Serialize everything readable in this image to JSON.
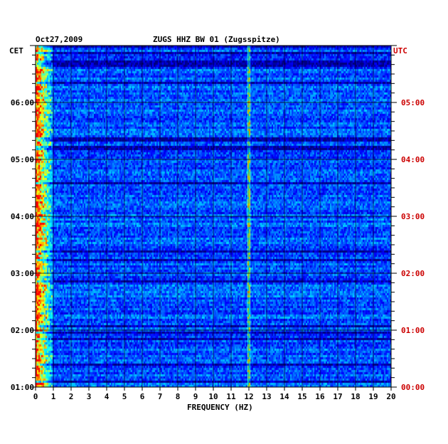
{
  "chart_data": {
    "type": "heatmap",
    "title": "ZUGS HHZ BW 01 (Zugsspitze)",
    "date": "Oct27,2009",
    "xlabel": "FREQUENCY (HZ)",
    "x_ticks": [
      0,
      1,
      2,
      3,
      4,
      5,
      6,
      7,
      8,
      9,
      10,
      11,
      12,
      13,
      14,
      15,
      16,
      17,
      18,
      19,
      20
    ],
    "xlim": [
      0,
      20
    ],
    "left_axis_label": "CET",
    "right_axis_label": "UTC",
    "left_ticks": [
      "06:00",
      "05:00",
      "04:00",
      "03:00",
      "02:00",
      "01:00"
    ],
    "right_ticks": [
      "05:00",
      "04:00",
      "03:00",
      "02:00",
      "01:00",
      "00:00"
    ],
    "tick_positions_hours_from_bottom": [
      5,
      4,
      3,
      2,
      1,
      0
    ],
    "hours_shown": 6,
    "grid": true,
    "colormap": [
      "#00007f",
      "#0000ff",
      "#0080ff",
      "#00ffff",
      "#ffff00",
      "#ff0000"
    ],
    "features": {
      "strong_low_frequency_band_hz": [
        0,
        1
      ],
      "persistent_spectral_line_hz": 12
    }
  },
  "colors": {
    "left_label": "#000000",
    "right_label": "#cc0000"
  }
}
